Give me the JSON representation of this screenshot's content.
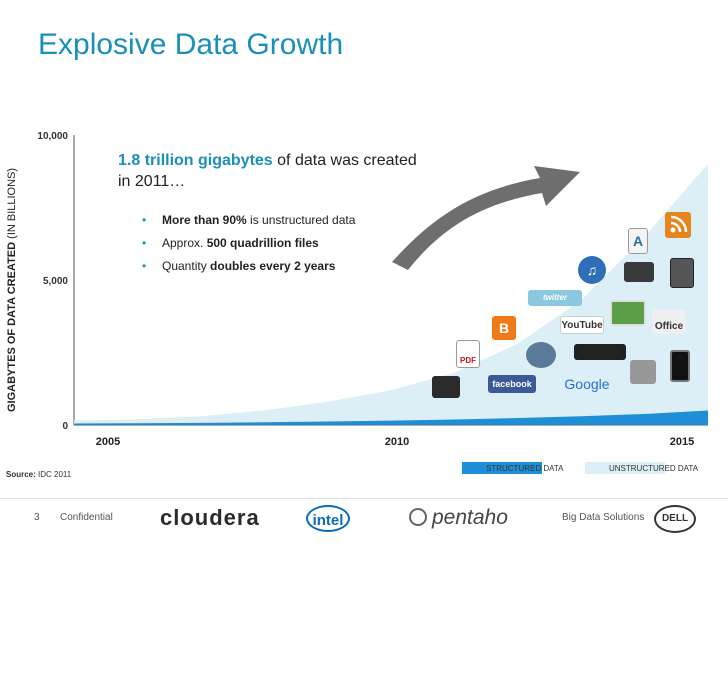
{
  "title": "Explosive Data Growth",
  "y_axis_label_bold": "GIGABYTES OF DATA CREATED",
  "y_axis_label_rest": "(IN BILLIONS)",
  "callout": {
    "highlight": "1.8 trillion gigabytes",
    "rest": "of data was created in 2011…"
  },
  "bullets": [
    {
      "bold": "More than 90%",
      "rest": " is unstructured data"
    },
    {
      "prefix": "Approx. ",
      "bold": "500 quadrillion files"
    },
    {
      "prefix": "Quantity ",
      "bold": "doubles every 2 years"
    }
  ],
  "source_label": "Source:",
  "source_value": "IDC 2011",
  "footer": {
    "page_number": "3",
    "confidential": "Confidential",
    "right_text": "Big Data Solutions",
    "logos": [
      "cloudera",
      "intel",
      "pentaho",
      "DELL"
    ]
  },
  "icons": [
    "rss-icon",
    "document-icon",
    "itunes-icon",
    "camcorder-icon",
    "smartphone-icon",
    "twitter-icon",
    "photo-viewer-icon",
    "office-icon",
    "blogger-icon",
    "youtube-icon",
    "pdf-icon",
    "webcam-icon",
    "dvd-player-icon",
    "fax-icon",
    "iphone-icon",
    "camera-icon",
    "facebook-icon",
    "google-icon"
  ],
  "icon_labels": {
    "twitter": "twitter",
    "youtube": "YouTube",
    "facebook": "facebook",
    "google": "Google",
    "office": "Office",
    "pdf": "PDF",
    "blogger": "B"
  },
  "colors": {
    "accent": "#1a8fb8",
    "structured": "#1e8fd6",
    "unstructured": "#dceef6",
    "arrow": "#6a6a6a"
  },
  "chart_data": {
    "type": "area",
    "title": "",
    "xlabel": "",
    "ylabel": "GIGABYTES OF DATA CREATED (IN BILLIONS)",
    "x": [
      2005,
      2006,
      2007,
      2008,
      2009,
      2010,
      2011,
      2012,
      2013,
      2014,
      2015
    ],
    "xticks": [
      "2005",
      "2010",
      "2015"
    ],
    "yticks": [
      "0",
      "5,000",
      "10,000"
    ],
    "ylim": [
      0,
      10000
    ],
    "series": [
      {
        "name": "STRUCTURED DATA",
        "values": [
          50,
          60,
          75,
          95,
          120,
          150,
          190,
          240,
          300,
          380,
          500
        ]
      },
      {
        "name": "UNSTRUCTURED DATA",
        "values": [
          150,
          200,
          300,
          500,
          800,
          1200,
          1800,
          2800,
          4300,
          6500,
          9000
        ]
      }
    ],
    "legend": "bottom-right"
  }
}
